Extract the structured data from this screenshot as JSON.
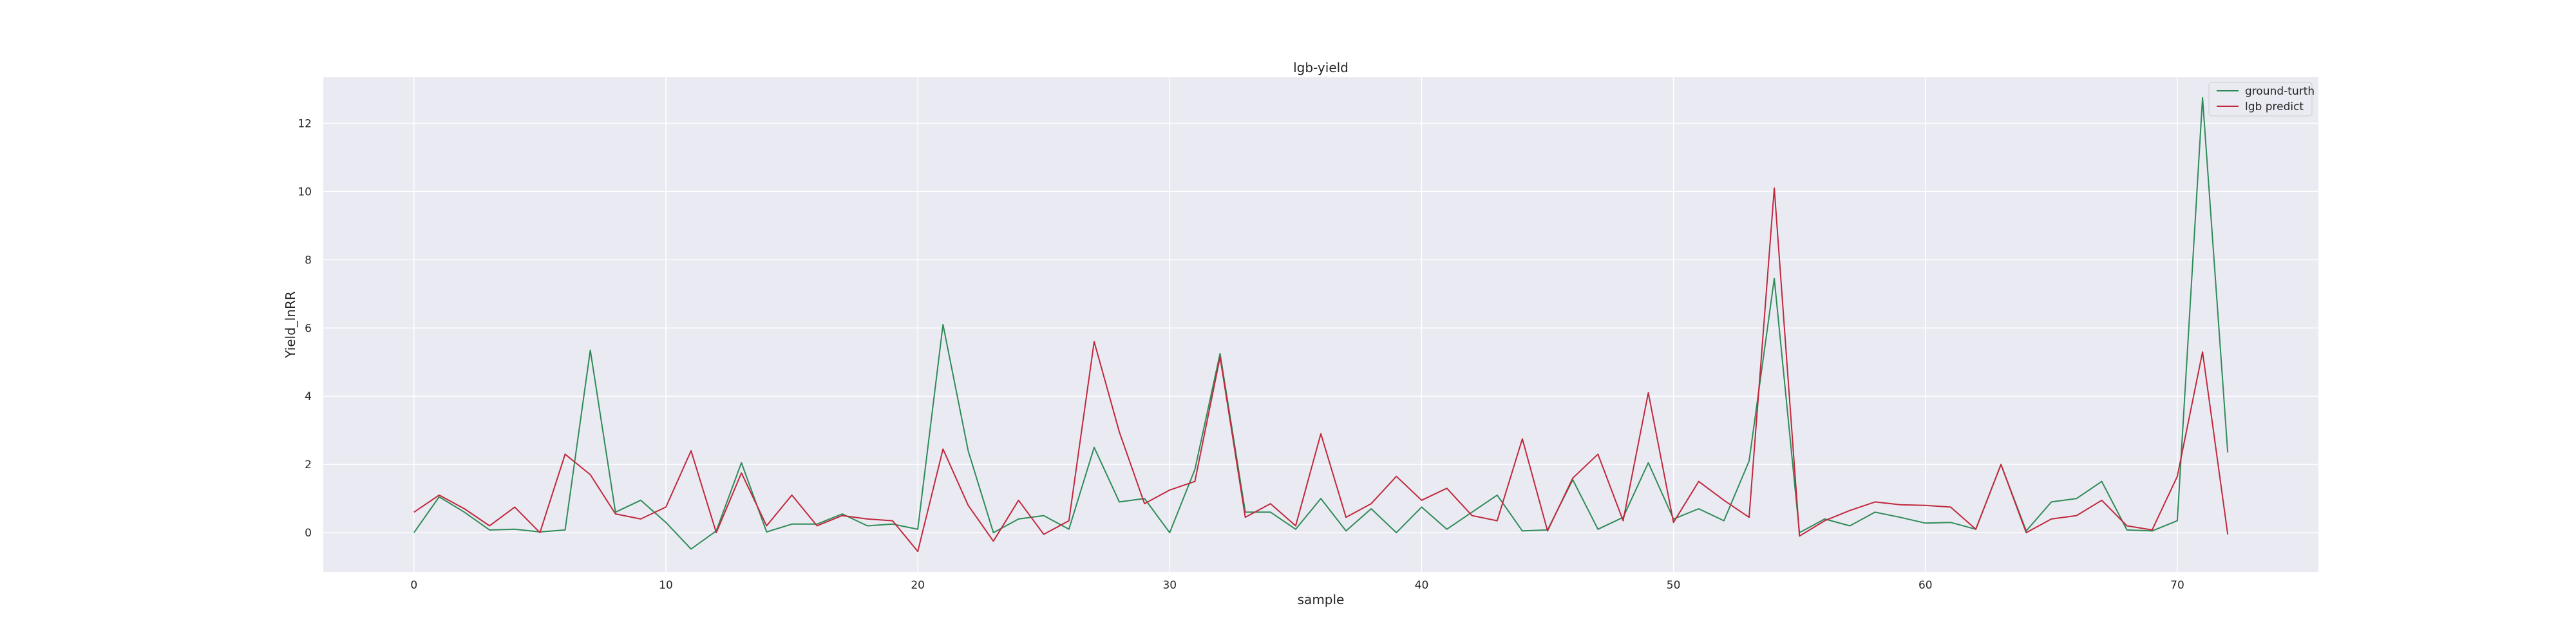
{
  "chart_data": {
    "type": "line",
    "title": "lgb-yield",
    "xlabel": "sample",
    "ylabel": "Yield_lnRR",
    "xlim": [
      -3.6,
      75.6
    ],
    "ylim": [
      -1.15,
      13.35
    ],
    "xticks": [
      0,
      10,
      20,
      30,
      40,
      50,
      60,
      70
    ],
    "yticks": [
      0,
      2,
      4,
      6,
      8,
      10,
      12
    ],
    "grid": true,
    "legend_position": "top-right",
    "x": [
      0,
      1,
      2,
      3,
      4,
      5,
      6,
      7,
      8,
      9,
      10,
      11,
      12,
      13,
      14,
      15,
      16,
      17,
      18,
      19,
      20,
      21,
      22,
      23,
      24,
      25,
      26,
      27,
      28,
      29,
      30,
      31,
      32,
      33,
      34,
      35,
      36,
      37,
      38,
      39,
      40,
      41,
      42,
      43,
      44,
      45,
      46,
      47,
      48,
      49,
      50,
      51,
      52,
      53,
      54,
      55,
      56,
      57,
      58,
      59,
      60,
      61,
      62,
      63,
      64,
      65,
      66,
      67,
      68,
      69,
      70,
      71,
      72
    ],
    "series": [
      {
        "name": "ground-turth",
        "color": "#2e8b57",
        "values": [
          0.0,
          1.05,
          0.6,
          0.08,
          0.1,
          0.02,
          0.08,
          5.35,
          0.6,
          0.95,
          0.3,
          -0.48,
          0.05,
          2.05,
          0.02,
          0.25,
          0.25,
          0.55,
          0.2,
          0.25,
          0.1,
          6.1,
          2.4,
          0.0,
          0.4,
          0.5,
          0.1,
          2.5,
          0.9,
          1.0,
          0.0,
          1.85,
          5.25,
          0.6,
          0.6,
          0.1,
          1.0,
          0.05,
          0.7,
          0.0,
          0.75,
          0.1,
          0.6,
          1.1,
          0.05,
          0.08,
          1.55,
          0.1,
          0.45,
          2.05,
          0.4,
          0.7,
          0.35,
          2.1,
          7.45,
          0.0,
          0.4,
          0.2,
          0.6,
          0.45,
          0.28,
          0.3,
          0.1,
          2.0,
          0.05,
          0.9,
          1.0,
          1.5,
          0.08,
          0.05,
          0.35,
          12.75,
          2.35
        ]
      },
      {
        "name": "lgb predict",
        "color": "#c0283c",
        "values": [
          0.6,
          1.1,
          0.7,
          0.2,
          0.75,
          0.0,
          2.3,
          1.7,
          0.55,
          0.4,
          0.75,
          2.4,
          0.0,
          1.75,
          0.2,
          1.1,
          0.2,
          0.5,
          0.4,
          0.35,
          -0.55,
          2.45,
          0.8,
          -0.25,
          0.95,
          -0.05,
          0.35,
          5.6,
          2.95,
          0.85,
          1.25,
          1.5,
          5.15,
          0.45,
          0.85,
          0.2,
          2.9,
          0.45,
          0.85,
          1.65,
          0.95,
          1.3,
          0.5,
          0.35,
          2.75,
          0.05,
          1.6,
          2.3,
          0.35,
          4.1,
          0.3,
          1.5,
          0.95,
          0.45,
          10.1,
          -0.1,
          0.35,
          0.65,
          0.9,
          0.82,
          0.8,
          0.75,
          0.1,
          2.0,
          0.0,
          0.4,
          0.5,
          0.95,
          0.2,
          0.08,
          1.65,
          5.3,
          -0.05
        ]
      }
    ]
  },
  "style": {
    "plot_background": "#eaeaf2",
    "grid_color": "#ffffff"
  }
}
